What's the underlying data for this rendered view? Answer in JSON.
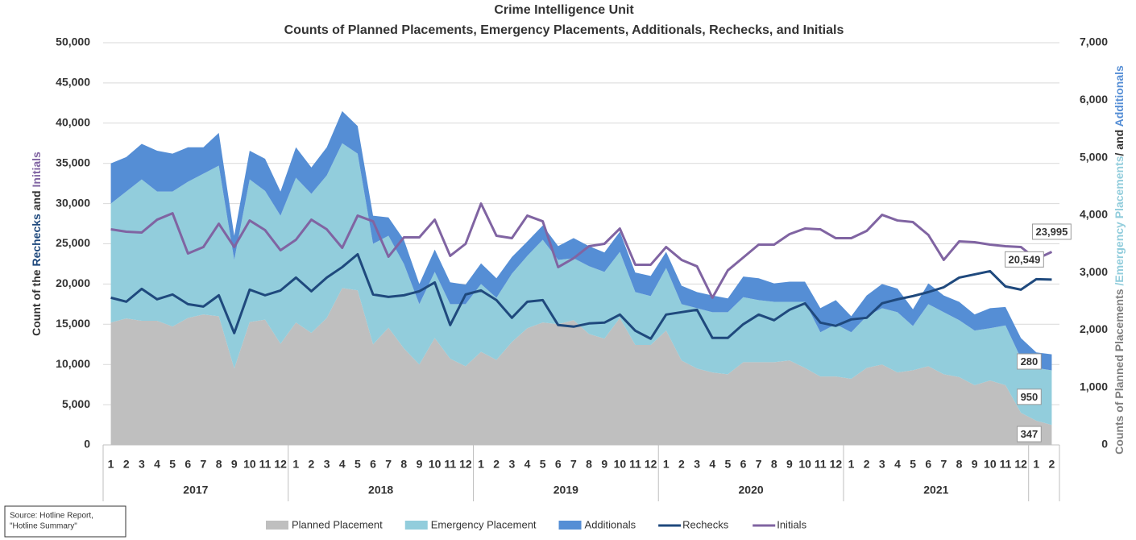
{
  "chart_data": {
    "type": "area-line-combo",
    "title": [
      "Crime Intelligence Unit",
      "Counts of Planned Placements, Emergency Placements, Additionals, Rechecks, and Initials"
    ],
    "ylabel_parts": [
      {
        "text": "Count of the ",
        "color": "#333333"
      },
      {
        "text": "Rechecks",
        "color": "#1f497d"
      },
      {
        "text": " and ",
        "color": "#333333"
      },
      {
        "text": "Initials",
        "color": "#8064a2"
      }
    ],
    "y2label_parts": [
      {
        "text": "Counts of Planned Placements ",
        "color": "#7f7f7f"
      },
      {
        "text": "/Emergency Placements",
        "color": "#92cddc"
      },
      {
        "text": "/ and ",
        "color": "#333333"
      },
      {
        "text": "Additionals",
        "color": "#558ed5"
      }
    ],
    "categories": [
      "1",
      "2",
      "3",
      "4",
      "5",
      "6",
      "7",
      "8",
      "9",
      "10",
      "11",
      "12",
      "1",
      "2",
      "3",
      "4",
      "5",
      "6",
      "7",
      "8",
      "9",
      "10",
      "11",
      "12",
      "1",
      "2",
      "3",
      "4",
      "5",
      "6",
      "7",
      "8",
      "9",
      "10",
      "11",
      "12",
      "1",
      "2",
      "3",
      "4",
      "5",
      "6",
      "7",
      "8",
      "9",
      "10",
      "11",
      "12",
      "1",
      "2",
      "3",
      "4",
      "5",
      "6",
      "7",
      "8",
      "9",
      "10",
      "11",
      "12",
      "1",
      "2"
    ],
    "year_groups": [
      "2017",
      "2018",
      "2019",
      "2020",
      "2021"
    ],
    "ylim": [
      0,
      50000
    ],
    "yticks": [
      0,
      {
        "value": 5000,
        "label": "5,000"
      },
      {
        "value": 10000,
        "label": "10,000"
      },
      {
        "value": 15000,
        "label": "15,000"
      },
      {
        "value": 20000,
        "label": "20,000"
      },
      {
        "value": 25000,
        "label": "25,000"
      },
      {
        "value": 30000,
        "label": "30,000"
      },
      {
        "value": 35000,
        "label": "35,000"
      },
      {
        "value": 40000,
        "label": "40,000"
      },
      {
        "value": 45000,
        "label": "45,000"
      },
      {
        "value": 50000,
        "label": "50,000"
      }
    ],
    "y2lim": [
      0,
      7000
    ],
    "y2ticks": [
      0,
      {
        "value": 1000,
        "label": "1,000"
      },
      {
        "value": 2000,
        "label": "2,000"
      },
      {
        "value": 3000,
        "label": "3,000"
      },
      {
        "value": 4000,
        "label": "4,000"
      },
      {
        "value": 5000,
        "label": "5,000"
      },
      {
        "value": 6000,
        "label": "6,000"
      },
      {
        "value": 7000,
        "label": "7,000"
      }
    ],
    "grid": true,
    "series": [
      {
        "name": "Planned Placement",
        "kind": "stacked-area",
        "axis": "y2",
        "color": "#bfbfbf",
        "values": [
          2130,
          2200,
          2160,
          2160,
          2060,
          2210,
          2270,
          2240,
          1330,
          2140,
          2180,
          1760,
          2130,
          1950,
          2210,
          2730,
          2690,
          1750,
          2040,
          1680,
          1400,
          1860,
          1500,
          1370,
          1620,
          1480,
          1790,
          2030,
          2130,
          2100,
          2170,
          1930,
          1850,
          2210,
          1740,
          1740,
          1990,
          1470,
          1330,
          1260,
          1230,
          1440,
          1440,
          1440,
          1470,
          1340,
          1190,
          1190,
          1150,
          1340,
          1400,
          1260,
          1300,
          1370,
          1230,
          1180,
          1040,
          1120,
          1040,
          560,
          420,
          347
        ],
        "value_labels": [
          null,
          null,
          null,
          null,
          null,
          null,
          null,
          null,
          null,
          null,
          null,
          null,
          null,
          null,
          null,
          null,
          null,
          null,
          null,
          null,
          null,
          null,
          null,
          null,
          null,
          null,
          null,
          null,
          null,
          null,
          null,
          null,
          null,
          null,
          null,
          null,
          null,
          null,
          null,
          null,
          null,
          null,
          null,
          null,
          null,
          null,
          null,
          null,
          null,
          null,
          null,
          null,
          null,
          null,
          null,
          null,
          null,
          null,
          null,
          null,
          null,
          "347"
        ]
      },
      {
        "name": "Emergency Placement",
        "kind": "stacked-area",
        "axis": "y2",
        "color": "#92cddc",
        "values": [
          2070,
          2210,
          2460,
          2250,
          2350,
          2370,
          2450,
          2620,
          1890,
          2480,
          2240,
          2230,
          2520,
          2420,
          2480,
          2520,
          2380,
          1750,
          1600,
          1470,
          1050,
          1150,
          950,
          1080,
          1180,
          1080,
          1190,
          1260,
          1440,
          1120,
          1080,
          1180,
          1160,
          1150,
          920,
          850,
          1090,
          980,
          1050,
          1050,
          1080,
          1130,
          1080,
          1050,
          1020,
          1150,
          770,
          910,
          810,
          900,
          980,
          1050,
          770,
          1080,
          1080,
          990,
          950,
          910,
          1040,
          950,
          920,
          950
        ],
        "value_labels": [
          null,
          null,
          null,
          null,
          null,
          null,
          null,
          null,
          null,
          null,
          null,
          null,
          null,
          null,
          null,
          null,
          null,
          null,
          null,
          null,
          null,
          null,
          null,
          null,
          null,
          null,
          null,
          null,
          null,
          null,
          null,
          null,
          null,
          null,
          null,
          null,
          null,
          null,
          null,
          null,
          null,
          null,
          null,
          null,
          null,
          null,
          null,
          null,
          null,
          null,
          null,
          null,
          null,
          null,
          null,
          null,
          null,
          null,
          null,
          null,
          null,
          "950"
        ]
      },
      {
        "name": "Additionals",
        "kind": "stacked-area",
        "axis": "y2",
        "color": "#558ed5",
        "values": [
          700,
          600,
          620,
          710,
          660,
          600,
          460,
          570,
          420,
          500,
          560,
          420,
          530,
          460,
          490,
          560,
          480,
          490,
          320,
          420,
          350,
          390,
          380,
          340,
          360,
          340,
          290,
          250,
          250,
          240,
          350,
          350,
          340,
          350,
          340,
          350,
          280,
          320,
          280,
          290,
          240,
          360,
          380,
          320,
          350,
          350,
          420,
          420,
          280,
          360,
          420,
          410,
          290,
          360,
          290,
          320,
          280,
          350,
          320,
          350,
          270,
          280
        ],
        "value_labels": [
          null,
          null,
          null,
          null,
          null,
          null,
          null,
          null,
          null,
          null,
          null,
          null,
          null,
          null,
          null,
          null,
          null,
          null,
          null,
          null,
          null,
          null,
          null,
          null,
          null,
          null,
          null,
          null,
          null,
          null,
          null,
          null,
          null,
          null,
          null,
          null,
          null,
          null,
          null,
          null,
          null,
          null,
          null,
          null,
          null,
          null,
          null,
          null,
          null,
          null,
          null,
          null,
          null,
          null,
          null,
          null,
          null,
          null,
          null,
          null,
          null,
          "280"
        ]
      },
      {
        "name": "Rechecks",
        "kind": "line",
        "color": "#1f497d",
        "values": [
          18300,
          17800,
          19400,
          18100,
          18700,
          17500,
          17200,
          18600,
          13900,
          19300,
          18600,
          19200,
          20800,
          19100,
          20800,
          22100,
          23700,
          18700,
          18400,
          18600,
          19100,
          20200,
          14900,
          18700,
          19200,
          18000,
          15800,
          17800,
          18000,
          14900,
          14700,
          15100,
          15200,
          16200,
          14200,
          13200,
          16200,
          16500,
          16800,
          13300,
          13300,
          15000,
          16200,
          15500,
          16800,
          17600,
          15200,
          14800,
          15600,
          15800,
          17600,
          18100,
          18500,
          19000,
          19600,
          20800,
          21200,
          21600,
          19700,
          19300,
          20600,
          20549
        ],
        "value_labels": [
          null,
          null,
          null,
          null,
          null,
          null,
          null,
          null,
          null,
          null,
          null,
          null,
          null,
          null,
          null,
          null,
          null,
          null,
          null,
          null,
          null,
          null,
          null,
          null,
          null,
          null,
          null,
          null,
          null,
          null,
          null,
          null,
          null,
          null,
          null,
          null,
          null,
          null,
          null,
          null,
          null,
          null,
          null,
          null,
          null,
          null,
          null,
          null,
          null,
          null,
          null,
          null,
          null,
          null,
          null,
          null,
          null,
          null,
          null,
          null,
          null,
          "20,549"
        ]
      },
      {
        "name": "Initials",
        "kind": "line",
        "color": "#8064a2",
        "values": [
          26800,
          26500,
          26400,
          28000,
          28800,
          23800,
          24600,
          27500,
          24600,
          27900,
          26700,
          24200,
          25500,
          28000,
          26800,
          24500,
          28500,
          27800,
          23400,
          25800,
          25800,
          28000,
          23500,
          25000,
          30000,
          26000,
          25700,
          28500,
          27800,
          22100,
          23200,
          24700,
          25000,
          26900,
          22400,
          22400,
          24600,
          23000,
          22200,
          18300,
          21700,
          23300,
          24900,
          24900,
          26200,
          26900,
          26800,
          25700,
          25700,
          26600,
          28600,
          27900,
          27700,
          26100,
          23000,
          25300,
          25200,
          24900,
          24700,
          24600,
          23100,
          23995
        ],
        "value_labels": [
          null,
          null,
          null,
          null,
          null,
          null,
          null,
          null,
          null,
          null,
          null,
          null,
          null,
          null,
          null,
          null,
          null,
          null,
          null,
          null,
          null,
          null,
          null,
          null,
          null,
          null,
          null,
          null,
          null,
          null,
          null,
          null,
          null,
          null,
          null,
          null,
          null,
          null,
          null,
          null,
          null,
          null,
          null,
          null,
          null,
          null,
          null,
          null,
          null,
          null,
          null,
          null,
          null,
          null,
          null,
          null,
          null,
          null,
          null,
          null,
          null,
          "23,995"
        ]
      }
    ],
    "source": [
      "Source: Hotline Report,",
      "\"Hotline Summary\""
    ]
  }
}
